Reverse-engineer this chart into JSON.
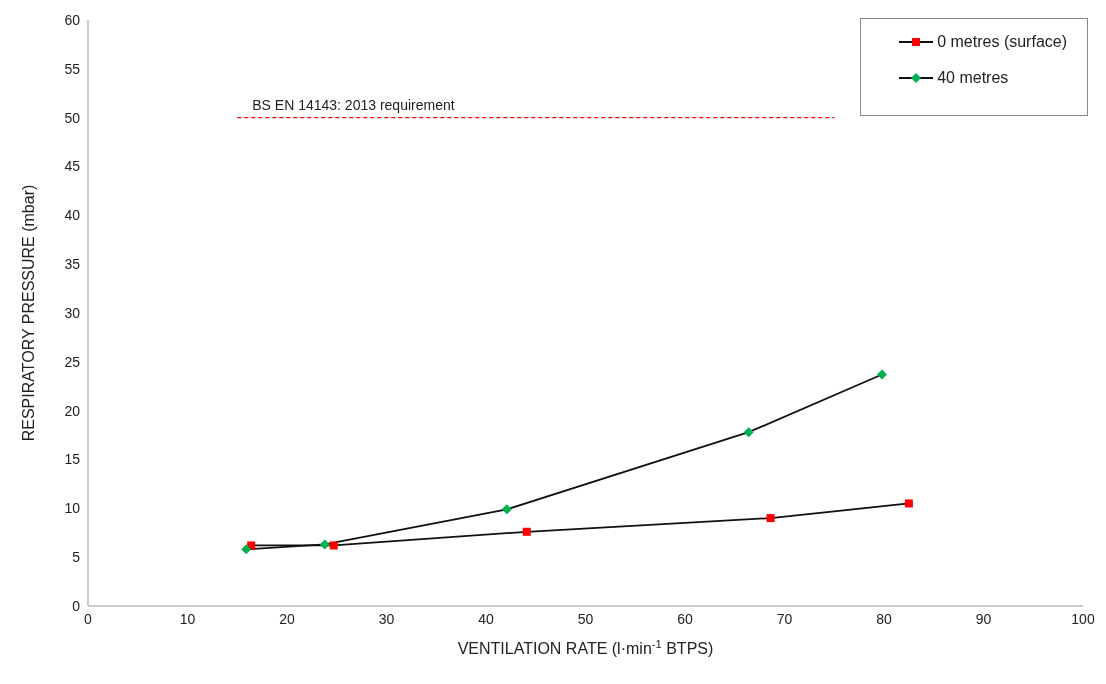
{
  "chart_data": {
    "type": "line",
    "xlabel": "VENTILATION RATE (l·min$^{-1}$ BTPS)",
    "ylabel": "RESPIRATORY PRESSURE  (mbar)",
    "xlim": [
      0,
      100
    ],
    "xticks": [
      0,
      10,
      20,
      30,
      40,
      50,
      60,
      70,
      80,
      90,
      100
    ],
    "ylim": [
      0,
      60
    ],
    "yticks": [
      0,
      5,
      10,
      15,
      20,
      25,
      30,
      35,
      40,
      45,
      50,
      55,
      60
    ],
    "legend": "top right",
    "line_style": "solid",
    "series": [
      {
        "name": "0 metres (surface)",
        "color": "#ff0000",
        "marker": "square",
        "x": [
          16.4,
          24.7,
          44.1,
          68.6,
          82.5
        ],
        "values": [
          6.2,
          6.2,
          7.6,
          9.0,
          10.5
        ]
      },
      {
        "name": "40 metres",
        "color": "#00b050",
        "marker": "diamond",
        "x": [
          15.9,
          23.8,
          42.1,
          66.4,
          79.8
        ],
        "values": [
          5.8,
          6.3,
          9.9,
          17.8,
          23.7
        ]
      },
      {
        "name": "BS EN 14143: 2013 requirement",
        "color": "#ff0000",
        "marker": "none",
        "line_style": "dashed",
        "x": [
          15,
          75
        ],
        "values": [
          50,
          50
        ]
      }
    ]
  }
}
